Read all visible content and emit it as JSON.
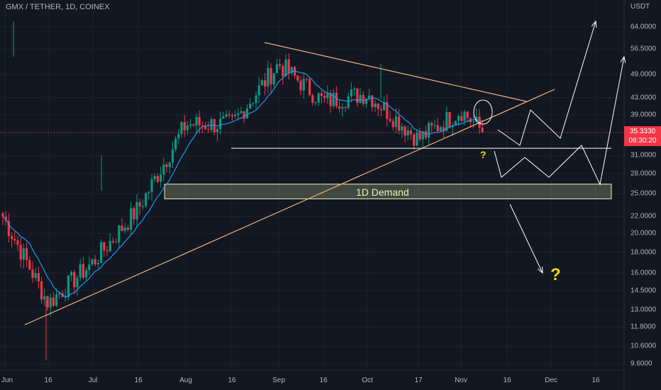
{
  "header": {
    "title": "GMX / TETHER, 1D, COINEX"
  },
  "price_axis": {
    "unit": "USDT",
    "labels": [
      "64.0000",
      "56.5000",
      "49.0000",
      "43.0000",
      "39.0000",
      "35.3330",
      "31.0000",
      "28.0000",
      "25.0000",
      "22.0000",
      "20.0000",
      "18.0000",
      "16.0000",
      "14.5000",
      "13.0000",
      "11.8000",
      "10.6000",
      "9.6000"
    ]
  },
  "time_axis": {
    "labels": [
      "Jun",
      "16",
      "Jul",
      "16",
      "Aug",
      "16",
      "Sep",
      "16",
      "Oct",
      "17",
      "Nov",
      "16",
      "Dec",
      "16"
    ]
  },
  "current_price": {
    "value": "35.3330",
    "countdown": "08:30:20",
    "color": "#f23645"
  },
  "annotations": {
    "demand_zone_label": "1D Demand",
    "question_small": "?",
    "question_big": "?"
  },
  "colors": {
    "background": "#131722",
    "up": "#089981",
    "down": "#f23645",
    "ma": "#2196f3",
    "trendline": "#f0b27a",
    "demand_fill": "#e8f5b0"
  },
  "chart_data": {
    "type": "candlestick",
    "symbol": "GMX / TETHER",
    "interval": "1D",
    "exchange": "COINEX",
    "y_scale": "log",
    "ylim": [
      9.2,
      72
    ],
    "x": [
      "Jun",
      "16",
      "Jul",
      "16",
      "Aug",
      "16",
      "Sep",
      "16",
      "Oct",
      "17",
      "Nov",
      "16",
      "Dec",
      "16"
    ],
    "approx_close_path": [
      {
        "date": "Jun",
        "close": 22.0
      },
      {
        "date": "16",
        "close": 13.5
      },
      {
        "date": "Jul",
        "close": 17.0
      },
      {
        "date": "16",
        "close": 23.0
      },
      {
        "date": "Aug",
        "close": 37.0
      },
      {
        "date": "16",
        "close": 37.0
      },
      {
        "date": "Sep",
        "close": 52.0
      },
      {
        "date": "16",
        "close": 42.0
      },
      {
        "date": "Oct",
        "close": 44.0
      },
      {
        "date": "17",
        "close": 34.0
      },
      {
        "date": "Nov",
        "close": 40.0
      },
      {
        "date": "Nov",
        "close": 35.333
      }
    ],
    "horizontal_support": 32.3,
    "demand_zone": {
      "label": "1D Demand",
      "low": 24.3,
      "high": 26.4
    },
    "last_price": 35.333
  }
}
